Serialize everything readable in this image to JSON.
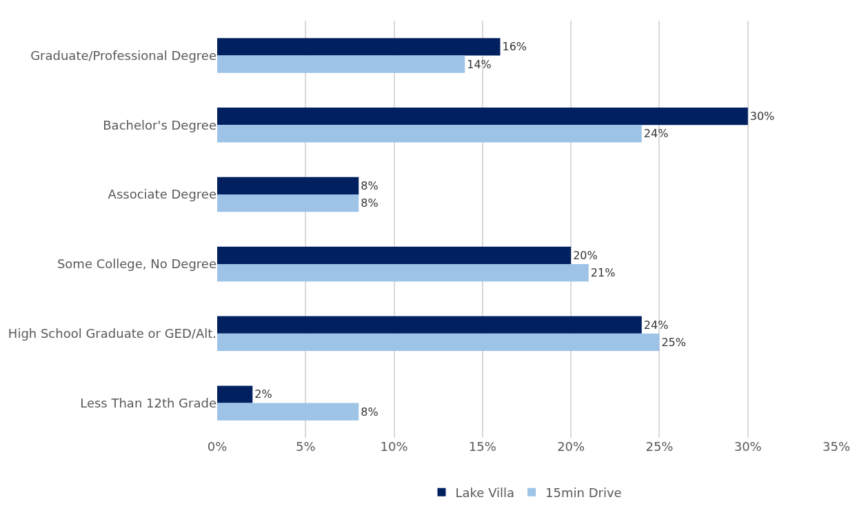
{
  "chart_data": {
    "type": "bar",
    "orientation": "horizontal",
    "categories": [
      "Graduate/Professional Degree",
      "Bachelor's Degree",
      "Associate Degree",
      "Some College, No Degree",
      "High School Graduate or GED/Alt.",
      "Less Than 12th Grade"
    ],
    "series": [
      {
        "name": "Lake Villa",
        "color": "#002060",
        "values": [
          16,
          30,
          8,
          20,
          24,
          2
        ],
        "value_labels": [
          "16%",
          "30%",
          "8%",
          "20%",
          "24%",
          "2%"
        ]
      },
      {
        "name": "15min Drive",
        "color": "#9dc3e6",
        "values": [
          14,
          24,
          8,
          21,
          25,
          8
        ],
        "value_labels": [
          "14%",
          "24%",
          "8%",
          "21%",
          "25%",
          "8%"
        ]
      }
    ],
    "xlim": [
      0,
      35
    ],
    "xticks": [
      {
        "value": 0,
        "label": "0%"
      },
      {
        "value": 5,
        "label": "5%"
      },
      {
        "value": 10,
        "label": "10%"
      },
      {
        "value": 15,
        "label": "15%"
      },
      {
        "value": 20,
        "label": "20%"
      },
      {
        "value": 25,
        "label": "25%"
      },
      {
        "value": 30,
        "label": "30%"
      },
      {
        "value": 35,
        "label": "35%"
      }
    ],
    "grid": "x",
    "legend": "bottom"
  }
}
